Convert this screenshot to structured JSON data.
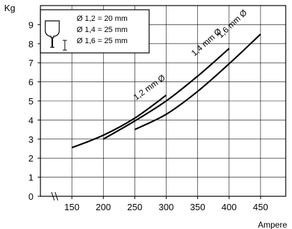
{
  "chart_data": {
    "type": "line",
    "ylabel": "Kg",
    "xlabel": "Ampere",
    "xlim": [
      100,
      490
    ],
    "ylim": [
      0,
      10
    ],
    "x_ticks": [
      150,
      200,
      250,
      300,
      350,
      400,
      450
    ],
    "y_ticks": [
      0,
      1,
      2,
      3,
      4,
      5,
      6,
      7,
      8,
      9
    ],
    "axis_break": "x between 0 and 150",
    "grid": true,
    "series": [
      {
        "name": "1,2 mm Ø",
        "points": [
          [
            150,
            2.55
          ],
          [
            200,
            3.2
          ],
          [
            250,
            4.1
          ],
          [
            300,
            5.3
          ]
        ]
      },
      {
        "name": "1,4 mm Ø",
        "points": [
          [
            200,
            3.0
          ],
          [
            250,
            3.95
          ],
          [
            300,
            5.0
          ],
          [
            350,
            6.3
          ],
          [
            400,
            7.75
          ]
        ]
      },
      {
        "name": "1,6 mm Ø",
        "points": [
          [
            250,
            3.5
          ],
          [
            300,
            4.3
          ],
          [
            350,
            5.5
          ],
          [
            400,
            6.95
          ],
          [
            450,
            8.5
          ]
        ]
      }
    ],
    "legend": {
      "placement": "top-left",
      "entries": [
        "Ø 1,2 = 20 mm",
        "Ø 1,4 = 25 mm",
        "Ø 1,6 = 25 mm"
      ]
    }
  }
}
